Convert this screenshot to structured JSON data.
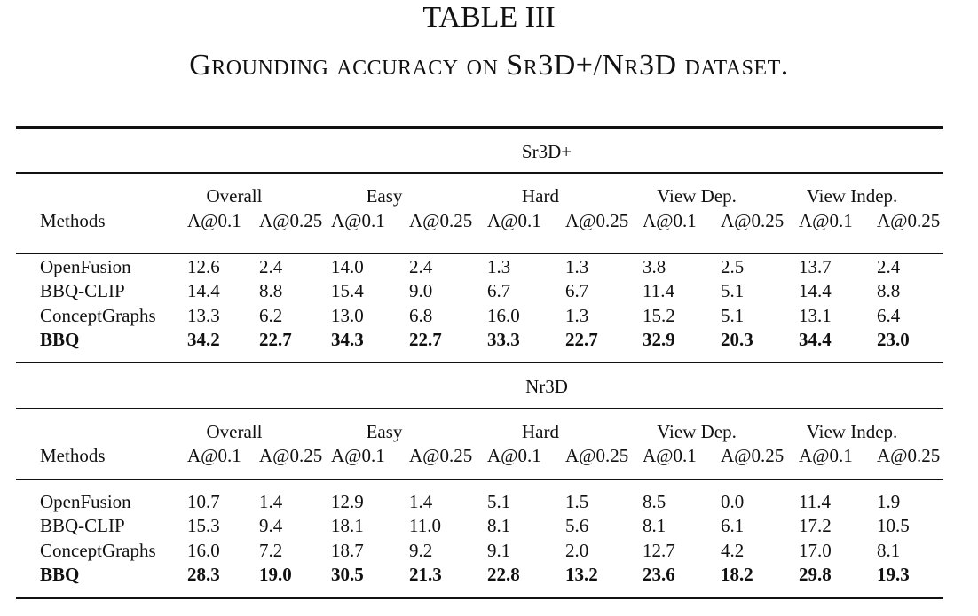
{
  "table": {
    "number": "TABLE III",
    "caption": "Grounding accuracy on Sr3D+/Nr3D dataset.",
    "groups": [
      "Overall",
      "Easy",
      "Hard",
      "View Dep.",
      "View Indep."
    ],
    "metrics": [
      "A@0.1",
      "A@0.25",
      "A@0.1",
      "A@0.25",
      "A@0.1",
      "A@0.25",
      "A@0.1",
      "A@0.25",
      "A@0.1",
      "A@0.25"
    ],
    "method_header": "Methods",
    "sections": [
      {
        "name": "Sr3D+",
        "rows": [
          {
            "method": "OpenFusion",
            "bold": false,
            "values": [
              "12.6",
              "2.4",
              "14.0",
              "2.4",
              "1.3",
              "1.3",
              "3.8",
              "2.5",
              "13.7",
              "2.4"
            ]
          },
          {
            "method": "BBQ-CLIP",
            "bold": false,
            "values": [
              "14.4",
              "8.8",
              "15.4",
              "9.0",
              "6.7",
              "6.7",
              "11.4",
              "5.1",
              "14.4",
              "8.8"
            ]
          },
          {
            "method": "ConceptGraphs",
            "bold": false,
            "values": [
              "13.3",
              "6.2",
              "13.0",
              "6.8",
              "16.0",
              "1.3",
              "15.2",
              "5.1",
              "13.1",
              "6.4"
            ]
          },
          {
            "method": "BBQ",
            "bold": true,
            "values": [
              "34.2",
              "22.7",
              "34.3",
              "22.7",
              "33.3",
              "22.7",
              "32.9",
              "20.3",
              "34.4",
              "23.0"
            ]
          }
        ]
      },
      {
        "name": "Nr3D",
        "rows": [
          {
            "method": "OpenFusion",
            "bold": false,
            "values": [
              "10.7",
              "1.4",
              "12.9",
              "1.4",
              "5.1",
              "1.5",
              "8.5",
              "0.0",
              "11.4",
              "1.9"
            ]
          },
          {
            "method": "BBQ-CLIP",
            "bold": false,
            "values": [
              "15.3",
              "9.4",
              "18.1",
              "11.0",
              "8.1",
              "5.6",
              "8.1",
              "6.1",
              "17.2",
              "10.5"
            ]
          },
          {
            "method": "ConceptGraphs",
            "bold": false,
            "values": [
              "16.0",
              "7.2",
              "18.7",
              "9.2",
              "9.1",
              "2.0",
              "12.7",
              "4.2",
              "17.0",
              "8.1"
            ]
          },
          {
            "method": "BBQ",
            "bold": true,
            "values": [
              "28.3",
              "19.0",
              "30.5",
              "21.3",
              "22.8",
              "13.2",
              "23.6",
              "18.2",
              "29.8",
              "19.3"
            ]
          }
        ]
      }
    ]
  }
}
